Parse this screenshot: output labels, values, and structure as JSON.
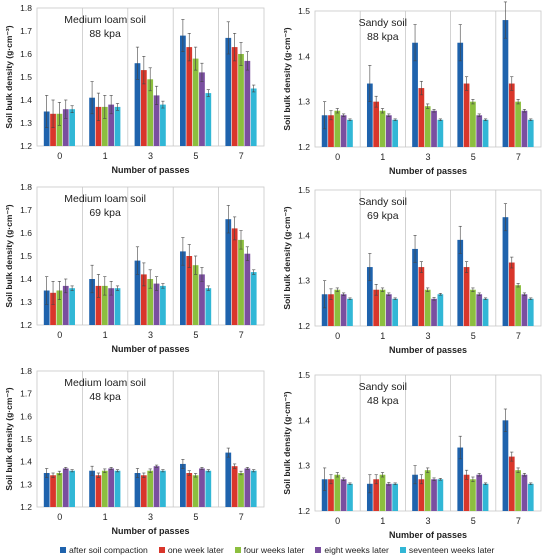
{
  "legend": [
    {
      "label": "after soil compaction",
      "color": "#1f63ad"
    },
    {
      "label": "one week later",
      "color": "#d9362b"
    },
    {
      "label": "four weeks later",
      "color": "#8cbf3f"
    },
    {
      "label": "eight weeks later",
      "color": "#7a4fa0"
    },
    {
      "label": "seventeen weeks later",
      "color": "#31b7d6"
    }
  ],
  "chart_data": [
    {
      "type": "bar",
      "title": "Medium loam soil",
      "subtitle": "88 kpa",
      "xlabel": "Number of passes",
      "ylabel": "Soil bulk density (g·cm⁻³)",
      "ylim": [
        1.2,
        1.8
      ],
      "yticks": [
        "1.2",
        "1.3",
        "1.4",
        "1.5",
        "1.6",
        "1.7",
        "1.8"
      ],
      "categories": [
        "0",
        "1",
        "3",
        "5",
        "7"
      ],
      "grid": "vertical separators",
      "series": [
        {
          "name": "after soil compaction",
          "values": [
            1.35,
            1.41,
            1.56,
            1.68,
            1.67
          ],
          "errors": [
            0.07,
            0.07,
            0.07,
            0.07,
            0.07
          ]
        },
        {
          "name": "one week later",
          "values": [
            1.34,
            1.37,
            1.53,
            1.63,
            1.63
          ],
          "errors": [
            0.06,
            0.06,
            0.06,
            0.06,
            0.06
          ]
        },
        {
          "name": "four weeks later",
          "values": [
            1.34,
            1.37,
            1.49,
            1.58,
            1.6
          ],
          "errors": [
            0.05,
            0.05,
            0.05,
            0.05,
            0.05
          ]
        },
        {
          "name": "eight weeks later",
          "values": [
            1.36,
            1.38,
            1.42,
            1.52,
            1.57
          ],
          "errors": [
            0.04,
            0.04,
            0.04,
            0.04,
            0.04
          ]
        },
        {
          "name": "seventeen weeks later",
          "values": [
            1.36,
            1.37,
            1.38,
            1.43,
            1.45
          ],
          "errors": [
            0.015,
            0.015,
            0.015,
            0.015,
            0.015
          ]
        }
      ]
    },
    {
      "type": "bar",
      "title": "Sandy soil",
      "subtitle": "88 kpa",
      "xlabel": "Number of passes",
      "ylabel": "Soil bulk density (g·cm⁻³)",
      "ylim": [
        1.2,
        1.5
      ],
      "yticks": [
        "1.2",
        "1.3",
        "1.4",
        "1.5"
      ],
      "categories": [
        "0",
        "1",
        "3",
        "5",
        "7"
      ],
      "grid": "vertical separators",
      "series": [
        {
          "name": "after soil compaction",
          "values": [
            1.27,
            1.34,
            1.43,
            1.43,
            1.48
          ],
          "errors": [
            0.03,
            0.04,
            0.04,
            0.04,
            0.04
          ]
        },
        {
          "name": "one week later",
          "values": [
            1.27,
            1.3,
            1.33,
            1.34,
            1.34
          ],
          "errors": [
            0.01,
            0.012,
            0.015,
            0.015,
            0.015
          ]
        },
        {
          "name": "four weeks later",
          "values": [
            1.28,
            1.28,
            1.29,
            1.3,
            1.3
          ],
          "errors": [
            0.005,
            0.005,
            0.005,
            0.005,
            0.005
          ]
        },
        {
          "name": "eight weeks later",
          "values": [
            1.27,
            1.27,
            1.28,
            1.27,
            1.28
          ],
          "errors": [
            0.003,
            0.003,
            0.003,
            0.003,
            0.003
          ]
        },
        {
          "name": "seventeen weeks later",
          "values": [
            1.26,
            1.26,
            1.26,
            1.26,
            1.26
          ],
          "errors": [
            0.002,
            0.002,
            0.002,
            0.002,
            0.002
          ]
        }
      ]
    },
    {
      "type": "bar",
      "title": "Medium loam soil",
      "subtitle": "69 kpa",
      "xlabel": "Number of passes",
      "ylabel": "Soil bulk density (g·cm⁻³)",
      "ylim": [
        1.2,
        1.8
      ],
      "yticks": [
        "1.2",
        "1.3",
        "1.4",
        "1.5",
        "1.6",
        "1.7",
        "1.8"
      ],
      "categories": [
        "0",
        "1",
        "3",
        "5",
        "7"
      ],
      "grid": "vertical separators",
      "series": [
        {
          "name": "after soil compaction",
          "values": [
            1.35,
            1.4,
            1.48,
            1.52,
            1.66
          ],
          "errors": [
            0.06,
            0.06,
            0.06,
            0.06,
            0.06
          ]
        },
        {
          "name": "one week later",
          "values": [
            1.34,
            1.37,
            1.42,
            1.5,
            1.62
          ],
          "errors": [
            0.05,
            0.05,
            0.05,
            0.05,
            0.05
          ]
        },
        {
          "name": "four weeks later",
          "values": [
            1.35,
            1.37,
            1.4,
            1.46,
            1.57
          ],
          "errors": [
            0.04,
            0.04,
            0.04,
            0.04,
            0.04
          ]
        },
        {
          "name": "eight weeks later",
          "values": [
            1.37,
            1.36,
            1.38,
            1.42,
            1.51
          ],
          "errors": [
            0.03,
            0.03,
            0.03,
            0.03,
            0.03
          ]
        },
        {
          "name": "seventeen weeks later",
          "values": [
            1.36,
            1.36,
            1.37,
            1.36,
            1.43
          ],
          "errors": [
            0.01,
            0.01,
            0.01,
            0.01,
            0.01
          ]
        }
      ]
    },
    {
      "type": "bar",
      "title": "Sandy soil",
      "subtitle": "69 kpa",
      "xlabel": "Number of passes",
      "ylabel": "Soil bulk density (g·cm⁻³)",
      "ylim": [
        1.2,
        1.5
      ],
      "yticks": [
        "1.2",
        "1.3",
        "1.4",
        "1.5"
      ],
      "categories": [
        "0",
        "1",
        "3",
        "5",
        "7"
      ],
      "grid": "vertical separators",
      "series": [
        {
          "name": "after soil compaction",
          "values": [
            1.27,
            1.33,
            1.37,
            1.39,
            1.44
          ],
          "errors": [
            0.03,
            0.03,
            0.03,
            0.03,
            0.03
          ]
        },
        {
          "name": "one week later",
          "values": [
            1.27,
            1.28,
            1.33,
            1.33,
            1.34
          ],
          "errors": [
            0.012,
            0.012,
            0.012,
            0.012,
            0.012
          ]
        },
        {
          "name": "four weeks later",
          "values": [
            1.28,
            1.28,
            1.28,
            1.28,
            1.29
          ],
          "errors": [
            0.004,
            0.004,
            0.004,
            0.004,
            0.004
          ]
        },
        {
          "name": "eight weeks later",
          "values": [
            1.27,
            1.27,
            1.26,
            1.27,
            1.27
          ],
          "errors": [
            0.003,
            0.003,
            0.003,
            0.003,
            0.003
          ]
        },
        {
          "name": "seventeen weeks later",
          "values": [
            1.26,
            1.26,
            1.27,
            1.26,
            1.26
          ],
          "errors": [
            0.002,
            0.002,
            0.002,
            0.002,
            0.002
          ]
        }
      ]
    },
    {
      "type": "bar",
      "title": "Medium loam soil",
      "subtitle": "48 kpa",
      "xlabel": "Number of passes",
      "ylabel": "Soil bulk density (g·cm⁻³)",
      "ylim": [
        1.2,
        1.8
      ],
      "yticks": [
        "1.2",
        "1.3",
        "1.4",
        "1.5",
        "1.6",
        "1.7",
        "1.8"
      ],
      "categories": [
        "0",
        "1",
        "3",
        "5",
        "7"
      ],
      "grid": "vertical separators",
      "series": [
        {
          "name": "after soil compaction",
          "values": [
            1.35,
            1.36,
            1.35,
            1.39,
            1.44
          ],
          "errors": [
            0.02,
            0.02,
            0.02,
            0.02,
            0.02
          ]
        },
        {
          "name": "one week later",
          "values": [
            1.34,
            1.34,
            1.34,
            1.35,
            1.38
          ],
          "errors": [
            0.01,
            0.01,
            0.01,
            0.01,
            0.01
          ]
        },
        {
          "name": "four weeks later",
          "values": [
            1.35,
            1.36,
            1.36,
            1.34,
            1.35
          ],
          "errors": [
            0.008,
            0.008,
            0.008,
            0.008,
            0.008
          ]
        },
        {
          "name": "eight weeks later",
          "values": [
            1.37,
            1.37,
            1.38,
            1.37,
            1.37
          ],
          "errors": [
            0.005,
            0.005,
            0.005,
            0.005,
            0.005
          ]
        },
        {
          "name": "seventeen weeks later",
          "values": [
            1.36,
            1.36,
            1.36,
            1.36,
            1.36
          ],
          "errors": [
            0.005,
            0.005,
            0.005,
            0.005,
            0.005
          ]
        }
      ]
    },
    {
      "type": "bar",
      "title": "Sandy soil",
      "subtitle": "48 kpa",
      "xlabel": "Number of passes",
      "ylabel": "Soil bulk density (g·cm⁻³)",
      "ylim": [
        1.2,
        1.5
      ],
      "yticks": [
        "1.2",
        "1.3",
        "1.4",
        "1.5"
      ],
      "categories": [
        "0",
        "1",
        "3",
        "5",
        "7"
      ],
      "grid": "vertical separators",
      "series": [
        {
          "name": "after soil compaction",
          "values": [
            1.27,
            1.26,
            1.28,
            1.34,
            1.4
          ],
          "errors": [
            0.025,
            0.02,
            0.02,
            0.025,
            0.025
          ]
        },
        {
          "name": "one week later",
          "values": [
            1.27,
            1.27,
            1.27,
            1.28,
            1.32
          ],
          "errors": [
            0.01,
            0.01,
            0.01,
            0.01,
            0.01
          ]
        },
        {
          "name": "four weeks later",
          "values": [
            1.28,
            1.28,
            1.29,
            1.27,
            1.29
          ],
          "errors": [
            0.005,
            0.005,
            0.005,
            0.005,
            0.005
          ]
        },
        {
          "name": "eight weeks later",
          "values": [
            1.27,
            1.26,
            1.27,
            1.28,
            1.28
          ],
          "errors": [
            0.003,
            0.003,
            0.003,
            0.003,
            0.003
          ]
        },
        {
          "name": "seventeen weeks later",
          "values": [
            1.26,
            1.26,
            1.27,
            1.26,
            1.26
          ],
          "errors": [
            0.002,
            0.002,
            0.002,
            0.002,
            0.002
          ]
        }
      ]
    }
  ]
}
